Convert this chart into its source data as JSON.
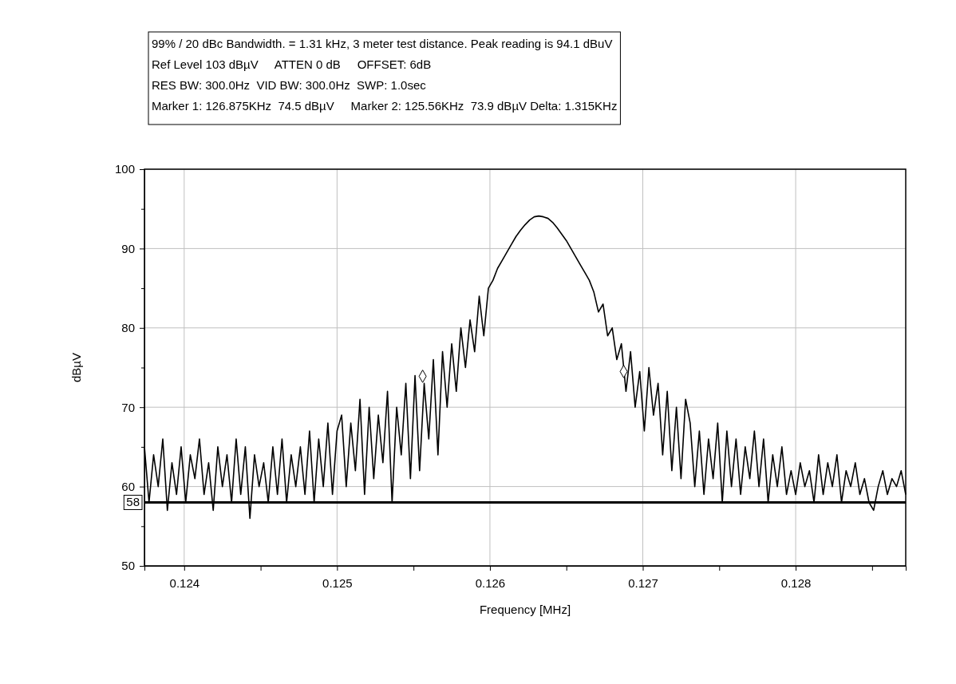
{
  "chart_data": {
    "type": "line",
    "xlabel": "Frequency [MHz]",
    "ylabel": "dBµV",
    "annotations": [
      "99% / 20 dBc Bandwidth. = 1.31 kHz, 3 meter test distance. Peak reading is 94.1 dBuV",
      "Ref Level 103 dBµV     ATTEN 0 dB     OFFSET: 6dB",
      "RES BW: 300.0Hz  VID BW: 300.0Hz  SWP: 1.0sec",
      "Marker 1: 126.875KHz  74.5 dBµV     Marker 2: 125.56KHz  73.9 dBµV Delta: 1.315KHz"
    ],
    "xlim": [
      0.12374,
      0.12872
    ],
    "xticks": [
      0.124,
      {
        "value": 0.1245,
        "label": null
      },
      0.125,
      {
        "value": 0.1255,
        "label": null
      },
      0.126,
      {
        "value": 0.1265,
        "label": null
      },
      0.127,
      {
        "value": 0.1275,
        "label": null
      },
      0.128,
      {
        "value": 0.1285,
        "label": null
      }
    ],
    "ylim": [
      50,
      100
    ],
    "yticks": [
      50,
      {
        "value": 55,
        "label": null
      },
      60,
      {
        "value": 65,
        "label": null
      },
      70,
      {
        "value": 75,
        "label": null
      },
      80,
      {
        "value": 85,
        "label": null
      },
      90,
      {
        "value": 95,
        "label": null
      },
      100
    ],
    "grid": true,
    "line_style": "solid",
    "ref_lines": [
      {
        "axis": "y",
        "value": 58,
        "label": "58",
        "color": "#000000"
      }
    ],
    "series": [
      {
        "color": "#000000",
        "marker": "none",
        "x": [
          0.12374,
          0.12377,
          0.1238,
          0.12383,
          0.12386,
          0.12389,
          0.12392,
          0.12395,
          0.12398,
          0.12401,
          0.12404,
          0.12407,
          0.1241,
          0.12413,
          0.12416,
          0.12419,
          0.12422,
          0.12425,
          0.12428,
          0.12431,
          0.12434,
          0.12437,
          0.1244,
          0.12443,
          0.12446,
          0.12449,
          0.12452,
          0.12455,
          0.12458,
          0.12461,
          0.12464,
          0.12467,
          0.1247,
          0.12473,
          0.12476,
          0.12479,
          0.12482,
          0.12485,
          0.12488,
          0.12491,
          0.12494,
          0.12497,
          0.125,
          0.12503,
          0.12506,
          0.12509,
          0.12512,
          0.12515,
          0.12518,
          0.12521,
          0.12524,
          0.12527,
          0.1253,
          0.12533,
          0.12536,
          0.12539,
          0.12542,
          0.12545,
          0.12548,
          0.12551,
          0.12554,
          0.12557,
          0.1256,
          0.12563,
          0.12566,
          0.12569,
          0.12572,
          0.12575,
          0.12578,
          0.12581,
          0.12584,
          0.12587,
          0.1259,
          0.12593,
          0.12596,
          0.12599,
          0.12602,
          0.12605,
          0.12608,
          0.12611,
          0.12614,
          0.12617,
          0.1262,
          0.12623,
          0.12626,
          0.12629,
          0.12632,
          0.12635,
          0.12638,
          0.12641,
          0.12644,
          0.12647,
          0.1265,
          0.12653,
          0.12656,
          0.12659,
          0.12662,
          0.12665,
          0.12668,
          0.12671,
          0.12674,
          0.12677,
          0.1268,
          0.12683,
          0.12686,
          0.12689,
          0.12692,
          0.12695,
          0.12698,
          0.12701,
          0.12704,
          0.12707,
          0.1271,
          0.12713,
          0.12716,
          0.12719,
          0.12722,
          0.12725,
          0.12728,
          0.12731,
          0.12734,
          0.12737,
          0.1274,
          0.12743,
          0.12746,
          0.12749,
          0.12752,
          0.12755,
          0.12758,
          0.12761,
          0.12764,
          0.12767,
          0.1277,
          0.12773,
          0.12776,
          0.12779,
          0.12782,
          0.12785,
          0.12788,
          0.12791,
          0.12794,
          0.12797,
          0.128,
          0.12803,
          0.12806,
          0.12809,
          0.12812,
          0.12815,
          0.12818,
          0.12821,
          0.12824,
          0.12827,
          0.1283,
          0.12833,
          0.12836,
          0.12839,
          0.12842,
          0.12845,
          0.12848,
          0.12851,
          0.12854,
          0.12857,
          0.1286,
          0.12863,
          0.12866,
          0.12869,
          0.12872
        ],
        "values": [
          65,
          58,
          64,
          60,
          66,
          57,
          63,
          59,
          65,
          58,
          64,
          61,
          66,
          59,
          63,
          57,
          65,
          60,
          64,
          58,
          66,
          59,
          65,
          56,
          64,
          60,
          63,
          58,
          65,
          59,
          66,
          58,
          64,
          60,
          65,
          59,
          67,
          58,
          66,
          60,
          68,
          59,
          67,
          69,
          60,
          68,
          62,
          71,
          59,
          70,
          61,
          69,
          63,
          72,
          58,
          70,
          64,
          73,
          61,
          74,
          62,
          73,
          66,
          76,
          64,
          77,
          70,
          78,
          72,
          80,
          75,
          81,
          77,
          84,
          79,
          85,
          86,
          87.5,
          88.5,
          89.5,
          90.5,
          91.5,
          92.3,
          93,
          93.6,
          94,
          94.1,
          94,
          93.8,
          93.3,
          92.6,
          91.8,
          91,
          90,
          89,
          88,
          87,
          86,
          84.5,
          82,
          83,
          79,
          80,
          76,
          78,
          72,
          77,
          70,
          74.5,
          67,
          75,
          69,
          73,
          64,
          72,
          62,
          70,
          61,
          71,
          68,
          60,
          67,
          59,
          66,
          61,
          68,
          58,
          67,
          60,
          66,
          59,
          65,
          61,
          67,
          60,
          66,
          58,
          64,
          60,
          65,
          59,
          62,
          59,
          63,
          60,
          62,
          58,
          64,
          59,
          63,
          60,
          64,
          58,
          62,
          60,
          63,
          59,
          61,
          58,
          57,
          60,
          62,
          59,
          61,
          60,
          62,
          59
        ]
      },
      {
        "type": "scatter",
        "color": "#000000",
        "marker": "diamond",
        "x": [
          0.12556,
          0.126875
        ],
        "values": [
          73.9,
          74.5
        ]
      }
    ]
  }
}
